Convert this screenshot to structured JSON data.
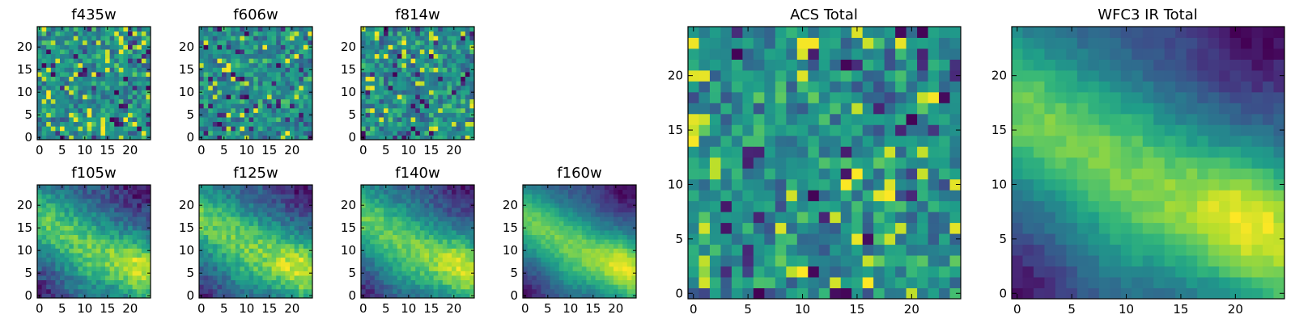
{
  "colormap": "viridis",
  "chart_data": [
    {
      "id": "f435w",
      "type": "heatmap",
      "title": "f435w",
      "xlim": [
        0,
        25
      ],
      "ylim": [
        0,
        25
      ],
      "xticks": [
        "0",
        "5",
        "10",
        "15",
        "20"
      ],
      "yticks": [
        "0",
        "5",
        "10",
        "15",
        "20"
      ],
      "pattern": "noise",
      "seed": 11
    },
    {
      "id": "f606w",
      "type": "heatmap",
      "title": "f606w",
      "xlim": [
        0,
        25
      ],
      "ylim": [
        0,
        25
      ],
      "xticks": [
        "0",
        "5",
        "10",
        "15",
        "20"
      ],
      "yticks": [
        "0",
        "5",
        "10",
        "15",
        "20"
      ],
      "pattern": "noise",
      "seed": 23
    },
    {
      "id": "f814w",
      "type": "heatmap",
      "title": "f814w",
      "xlim": [
        0,
        25
      ],
      "ylim": [
        0,
        25
      ],
      "xticks": [
        "0",
        "5",
        "10",
        "15",
        "20"
      ],
      "yticks": [
        "0",
        "5",
        "10",
        "15",
        "20"
      ],
      "pattern": "noise",
      "seed": 37
    },
    {
      "id": "f105w",
      "type": "heatmap",
      "title": "f105w",
      "xlim": [
        0,
        25
      ],
      "ylim": [
        0,
        25
      ],
      "xticks": [
        "0",
        "5",
        "10",
        "15",
        "20"
      ],
      "yticks": [
        "0",
        "5",
        "10",
        "15",
        "20"
      ],
      "pattern": "smooth",
      "noise": 0.18,
      "seed": 41
    },
    {
      "id": "f125w",
      "type": "heatmap",
      "title": "f125w",
      "xlim": [
        0,
        25
      ],
      "ylim": [
        0,
        25
      ],
      "xticks": [
        "0",
        "5",
        "10",
        "15",
        "20"
      ],
      "yticks": [
        "0",
        "5",
        "10",
        "15",
        "20"
      ],
      "pattern": "smooth",
      "noise": 0.18,
      "seed": 53
    },
    {
      "id": "f140w",
      "type": "heatmap",
      "title": "f140w",
      "xlim": [
        0,
        25
      ],
      "ylim": [
        0,
        25
      ],
      "xticks": [
        "0",
        "5",
        "10",
        "15",
        "20"
      ],
      "yticks": [
        "0",
        "5",
        "10",
        "15",
        "20"
      ],
      "pattern": "smooth",
      "noise": 0.14,
      "seed": 67
    },
    {
      "id": "f160w",
      "type": "heatmap",
      "title": "f160w",
      "xlim": [
        0,
        25
      ],
      "ylim": [
        0,
        25
      ],
      "xticks": [
        "0",
        "5",
        "10",
        "15",
        "20"
      ],
      "yticks": [
        "0",
        "5",
        "10",
        "15",
        "20"
      ],
      "pattern": "smooth",
      "noise": 0.08,
      "seed": 79
    },
    {
      "id": "acs_total",
      "type": "heatmap",
      "title": "ACS Total",
      "xlim": [
        0,
        25
      ],
      "ylim": [
        0,
        25
      ],
      "xticks": [
        "0",
        "5",
        "10",
        "15",
        "20"
      ],
      "yticks": [
        "0",
        "5",
        "10",
        "15",
        "20"
      ],
      "pattern": "noise",
      "seed": 97
    },
    {
      "id": "wfc3_total",
      "type": "heatmap",
      "title": "WFC3 IR Total",
      "xlim": [
        0,
        25
      ],
      "ylim": [
        0,
        25
      ],
      "xticks": [
        "0",
        "5",
        "10",
        "15",
        "20"
      ],
      "yticks": [
        "0",
        "5",
        "10",
        "15",
        "20"
      ],
      "pattern": "smooth",
      "noise": 0.07,
      "seed": 101
    }
  ]
}
